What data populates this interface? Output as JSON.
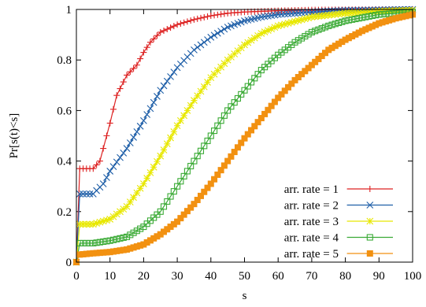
{
  "chart_data": {
    "type": "line",
    "title": "",
    "xlabel": "s",
    "ylabel": "Pr[s(t)<s]",
    "xlim": [
      0,
      100
    ],
    "ylim": [
      0,
      1
    ],
    "x_ticks": [
      "0",
      "10",
      "20",
      "30",
      "40",
      "50",
      "60",
      "70",
      "80",
      "90",
      "100"
    ],
    "y_ticks": [
      "0",
      "0.2",
      "0.4",
      "0.6",
      "0.8",
      "1"
    ],
    "grid": false,
    "legend_position": "bottom-right",
    "series": [
      {
        "name": "arr. rate = 1",
        "color": "#dd2222",
        "marker": "plus",
        "points": [
          [
            0,
            0
          ],
          [
            1,
            0.37
          ],
          [
            5,
            0.37
          ],
          [
            7,
            0.4
          ],
          [
            10,
            0.55
          ],
          [
            12,
            0.66
          ],
          [
            15,
            0.74
          ],
          [
            18,
            0.78
          ],
          [
            20,
            0.83
          ],
          [
            22,
            0.87
          ],
          [
            25,
            0.91
          ],
          [
            30,
            0.94
          ],
          [
            35,
            0.96
          ],
          [
            40,
            0.975
          ],
          [
            45,
            0.985
          ],
          [
            50,
            0.99
          ],
          [
            60,
            0.995
          ],
          [
            70,
            0.998
          ],
          [
            80,
            0.999
          ],
          [
            100,
            1.0
          ]
        ]
      },
      {
        "name": "arr. rate = 2",
        "color": "#1f5fa8",
        "marker": "cross",
        "points": [
          [
            0,
            0
          ],
          [
            1,
            0.27
          ],
          [
            5,
            0.27
          ],
          [
            8,
            0.31
          ],
          [
            10,
            0.36
          ],
          [
            15,
            0.45
          ],
          [
            20,
            0.56
          ],
          [
            25,
            0.68
          ],
          [
            30,
            0.77
          ],
          [
            35,
            0.84
          ],
          [
            40,
            0.89
          ],
          [
            45,
            0.93
          ],
          [
            50,
            0.955
          ],
          [
            55,
            0.97
          ],
          [
            60,
            0.98
          ],
          [
            70,
            0.99
          ],
          [
            80,
            0.996
          ],
          [
            90,
            0.998
          ],
          [
            100,
            1.0
          ]
        ]
      },
      {
        "name": "arr. rate = 3",
        "color": "#e8e800",
        "marker": "star",
        "points": [
          [
            0,
            0
          ],
          [
            1,
            0.15
          ],
          [
            5,
            0.15
          ],
          [
            10,
            0.17
          ],
          [
            15,
            0.22
          ],
          [
            20,
            0.31
          ],
          [
            25,
            0.42
          ],
          [
            30,
            0.54
          ],
          [
            35,
            0.64
          ],
          [
            40,
            0.73
          ],
          [
            45,
            0.8
          ],
          [
            50,
            0.86
          ],
          [
            55,
            0.905
          ],
          [
            60,
            0.935
          ],
          [
            70,
            0.97
          ],
          [
            80,
            0.985
          ],
          [
            90,
            0.993
          ],
          [
            100,
            0.997
          ]
        ]
      },
      {
        "name": "arr. rate = 4",
        "color": "#3aaa35",
        "marker": "square-open",
        "points": [
          [
            0,
            0
          ],
          [
            1,
            0.075
          ],
          [
            5,
            0.075
          ],
          [
            10,
            0.085
          ],
          [
            15,
            0.1
          ],
          [
            20,
            0.14
          ],
          [
            25,
            0.2
          ],
          [
            30,
            0.3
          ],
          [
            35,
            0.4
          ],
          [
            40,
            0.5
          ],
          [
            45,
            0.6
          ],
          [
            50,
            0.68
          ],
          [
            55,
            0.76
          ],
          [
            60,
            0.82
          ],
          [
            65,
            0.87
          ],
          [
            70,
            0.91
          ],
          [
            75,
            0.935
          ],
          [
            80,
            0.955
          ],
          [
            90,
            0.98
          ],
          [
            100,
            0.99
          ]
        ]
      },
      {
        "name": "arr. rate = 5",
        "color": "#f29111",
        "marker": "square-filled",
        "points": [
          [
            0,
            0
          ],
          [
            1,
            0.03
          ],
          [
            5,
            0.035
          ],
          [
            10,
            0.04
          ],
          [
            15,
            0.05
          ],
          [
            20,
            0.07
          ],
          [
            25,
            0.11
          ],
          [
            30,
            0.16
          ],
          [
            35,
            0.23
          ],
          [
            40,
            0.31
          ],
          [
            45,
            0.4
          ],
          [
            50,
            0.49
          ],
          [
            55,
            0.57
          ],
          [
            60,
            0.65
          ],
          [
            65,
            0.72
          ],
          [
            70,
            0.78
          ],
          [
            75,
            0.84
          ],
          [
            80,
            0.88
          ],
          [
            85,
            0.915
          ],
          [
            90,
            0.945
          ],
          [
            95,
            0.965
          ],
          [
            100,
            0.98
          ]
        ]
      }
    ]
  }
}
